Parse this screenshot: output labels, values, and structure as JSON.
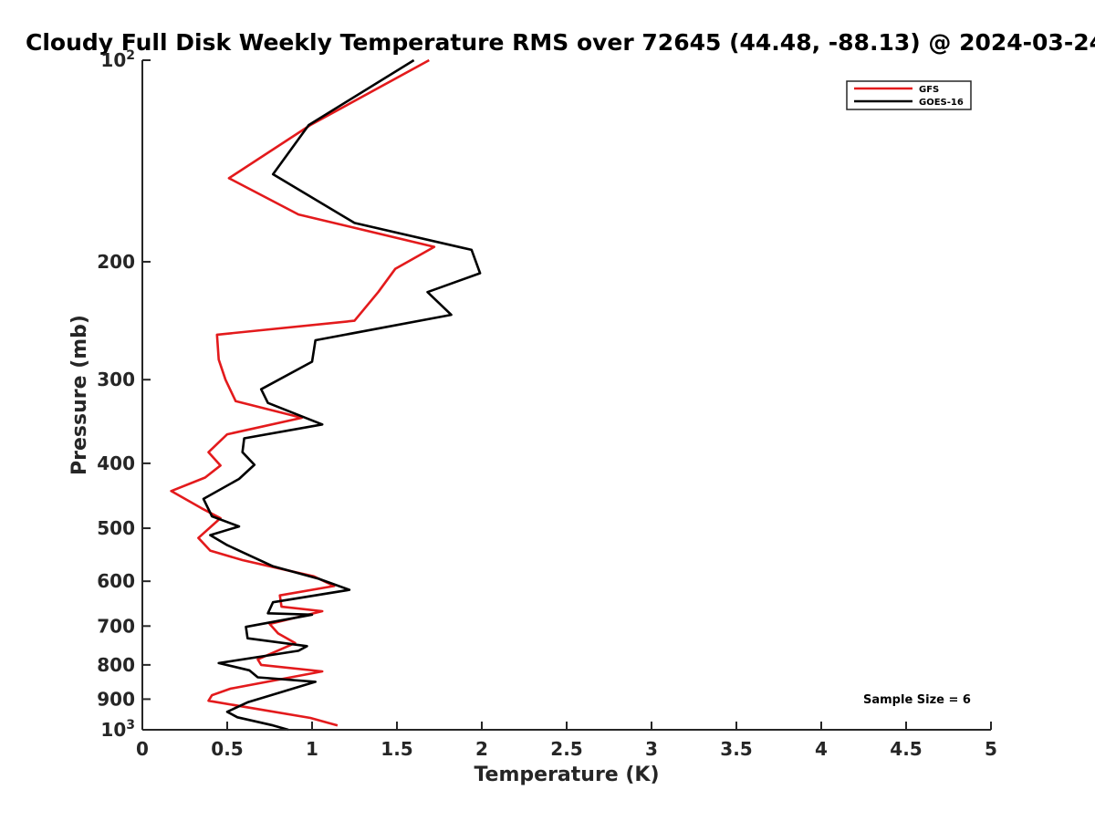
{
  "chart_data": {
    "type": "line",
    "title": "Cloudy Full Disk Weekly Temperature RMS over 72645 (44.48, -88.13) @ 2024-03-24",
    "xlabel": "Temperature (K)",
    "ylabel": "Pressure (mb)",
    "xlim": [
      0,
      5
    ],
    "ylim": [
      100,
      1000
    ],
    "y_scale": "log",
    "y_reversed": true,
    "grid": false,
    "legend_placement": "top-right",
    "xticks": [
      {
        "value": 0,
        "label": "0"
      },
      {
        "value": 0.5,
        "label": "0.5"
      },
      {
        "value": 1,
        "label": "1"
      },
      {
        "value": 1.5,
        "label": "1.5"
      },
      {
        "value": 2,
        "label": "2"
      },
      {
        "value": 2.5,
        "label": "2.5"
      },
      {
        "value": 3,
        "label": "3"
      },
      {
        "value": 3.5,
        "label": "3.5"
      },
      {
        "value": 4,
        "label": "4"
      },
      {
        "value": 4.5,
        "label": "4.5"
      },
      {
        "value": 5,
        "label": "5"
      }
    ],
    "yticks": [
      {
        "value": 100,
        "base": "10",
        "exp": "2"
      },
      {
        "value": 200,
        "base": "200",
        "exp": ""
      },
      {
        "value": 300,
        "base": "300",
        "exp": ""
      },
      {
        "value": 400,
        "base": "400",
        "exp": ""
      },
      {
        "value": 500,
        "base": "500",
        "exp": ""
      },
      {
        "value": 600,
        "base": "600",
        "exp": ""
      },
      {
        "value": 700,
        "base": "700",
        "exp": ""
      },
      {
        "value": 800,
        "base": "800",
        "exp": ""
      },
      {
        "value": 900,
        "base": "900",
        "exp": ""
      },
      {
        "value": 1000,
        "base": "10",
        "exp": "3"
      }
    ],
    "annotation": "Sample Size = 6",
    "series": [
      {
        "name": "GFS",
        "color": "#e31a1c",
        "points": [
          [
            1.69,
            100
          ],
          [
            0.99,
            125
          ],
          [
            0.51,
            150
          ],
          [
            0.92,
            170
          ],
          [
            1.72,
            190
          ],
          [
            1.49,
            205
          ],
          [
            1.39,
            222
          ],
          [
            1.25,
            245
          ],
          [
            0.44,
            257
          ],
          [
            0.45,
            280
          ],
          [
            0.49,
            300
          ],
          [
            0.55,
            323
          ],
          [
            0.94,
            342
          ],
          [
            0.5,
            362
          ],
          [
            0.39,
            385
          ],
          [
            0.46,
            403
          ],
          [
            0.37,
            420
          ],
          [
            0.17,
            440
          ],
          [
            0.35,
            467
          ],
          [
            0.46,
            483
          ],
          [
            0.33,
            517
          ],
          [
            0.4,
            540
          ],
          [
            0.59,
            558
          ],
          [
            1.01,
            590
          ],
          [
            1.13,
            610
          ],
          [
            0.81,
            630
          ],
          [
            0.82,
            655
          ],
          [
            1.06,
            665
          ],
          [
            0.75,
            695
          ],
          [
            0.8,
            718
          ],
          [
            0.9,
            742
          ],
          [
            0.68,
            785
          ],
          [
            0.7,
            800
          ],
          [
            1.06,
            818
          ],
          [
            0.52,
            868
          ],
          [
            0.41,
            888
          ],
          [
            0.39,
            905
          ],
          [
            0.99,
            960
          ],
          [
            1.15,
            985
          ]
        ]
      },
      {
        "name": "GOES-16",
        "color": "#000000",
        "points": [
          [
            1.6,
            100
          ],
          [
            0.98,
            125
          ],
          [
            0.77,
            148
          ],
          [
            1.25,
            175
          ],
          [
            1.94,
            192
          ],
          [
            1.99,
            208
          ],
          [
            1.68,
            222
          ],
          [
            1.82,
            240
          ],
          [
            1.02,
            262
          ],
          [
            1.0,
            282
          ],
          [
            0.7,
            310
          ],
          [
            0.74,
            325
          ],
          [
            1.06,
            350
          ],
          [
            0.6,
            367
          ],
          [
            0.59,
            385
          ],
          [
            0.66,
            402
          ],
          [
            0.57,
            422
          ],
          [
            0.36,
            452
          ],
          [
            0.41,
            480
          ],
          [
            0.57,
            497
          ],
          [
            0.4,
            512
          ],
          [
            0.5,
            530
          ],
          [
            0.77,
            570
          ],
          [
            1.04,
            595
          ],
          [
            1.22,
            618
          ],
          [
            0.77,
            645
          ],
          [
            0.74,
            670
          ],
          [
            1.0,
            673
          ],
          [
            0.61,
            702
          ],
          [
            0.62,
            730
          ],
          [
            0.97,
            750
          ],
          [
            0.92,
            762
          ],
          [
            0.45,
            795
          ],
          [
            0.63,
            815
          ],
          [
            0.68,
            835
          ],
          [
            1.02,
            848
          ],
          [
            0.62,
            910
          ],
          [
            0.5,
            940
          ],
          [
            0.56,
            958
          ],
          [
            0.77,
            985
          ],
          [
            0.86,
            1000
          ]
        ]
      }
    ]
  }
}
